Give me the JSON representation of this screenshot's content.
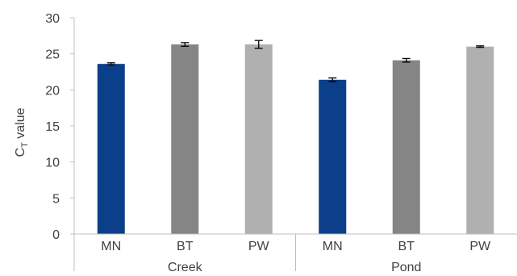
{
  "chart_data": {
    "type": "bar",
    "ylabel": "CT value",
    "ylabel_main": "C",
    "ylabel_sub": "T",
    "ylabel_rest": " value",
    "ylim": [
      0,
      30
    ],
    "yticks": [
      0,
      5,
      10,
      15,
      20,
      25,
      30
    ],
    "grid": false,
    "legend": "none",
    "groups": [
      "Creek",
      "Pond"
    ],
    "categories": [
      "MN",
      "BT",
      "PW",
      "MN",
      "BT",
      "PW"
    ],
    "group_of_category": [
      0,
      0,
      0,
      1,
      1,
      1
    ],
    "values": [
      23.6,
      26.3,
      26.3,
      21.4,
      24.1,
      26.0
    ],
    "errors": [
      0.15,
      0.25,
      0.55,
      0.25,
      0.25,
      0.1
    ],
    "colors": [
      "#0b3f8a",
      "#858585",
      "#b0b0b0",
      "#0b3f8a",
      "#858585",
      "#b0b0b0"
    ]
  }
}
